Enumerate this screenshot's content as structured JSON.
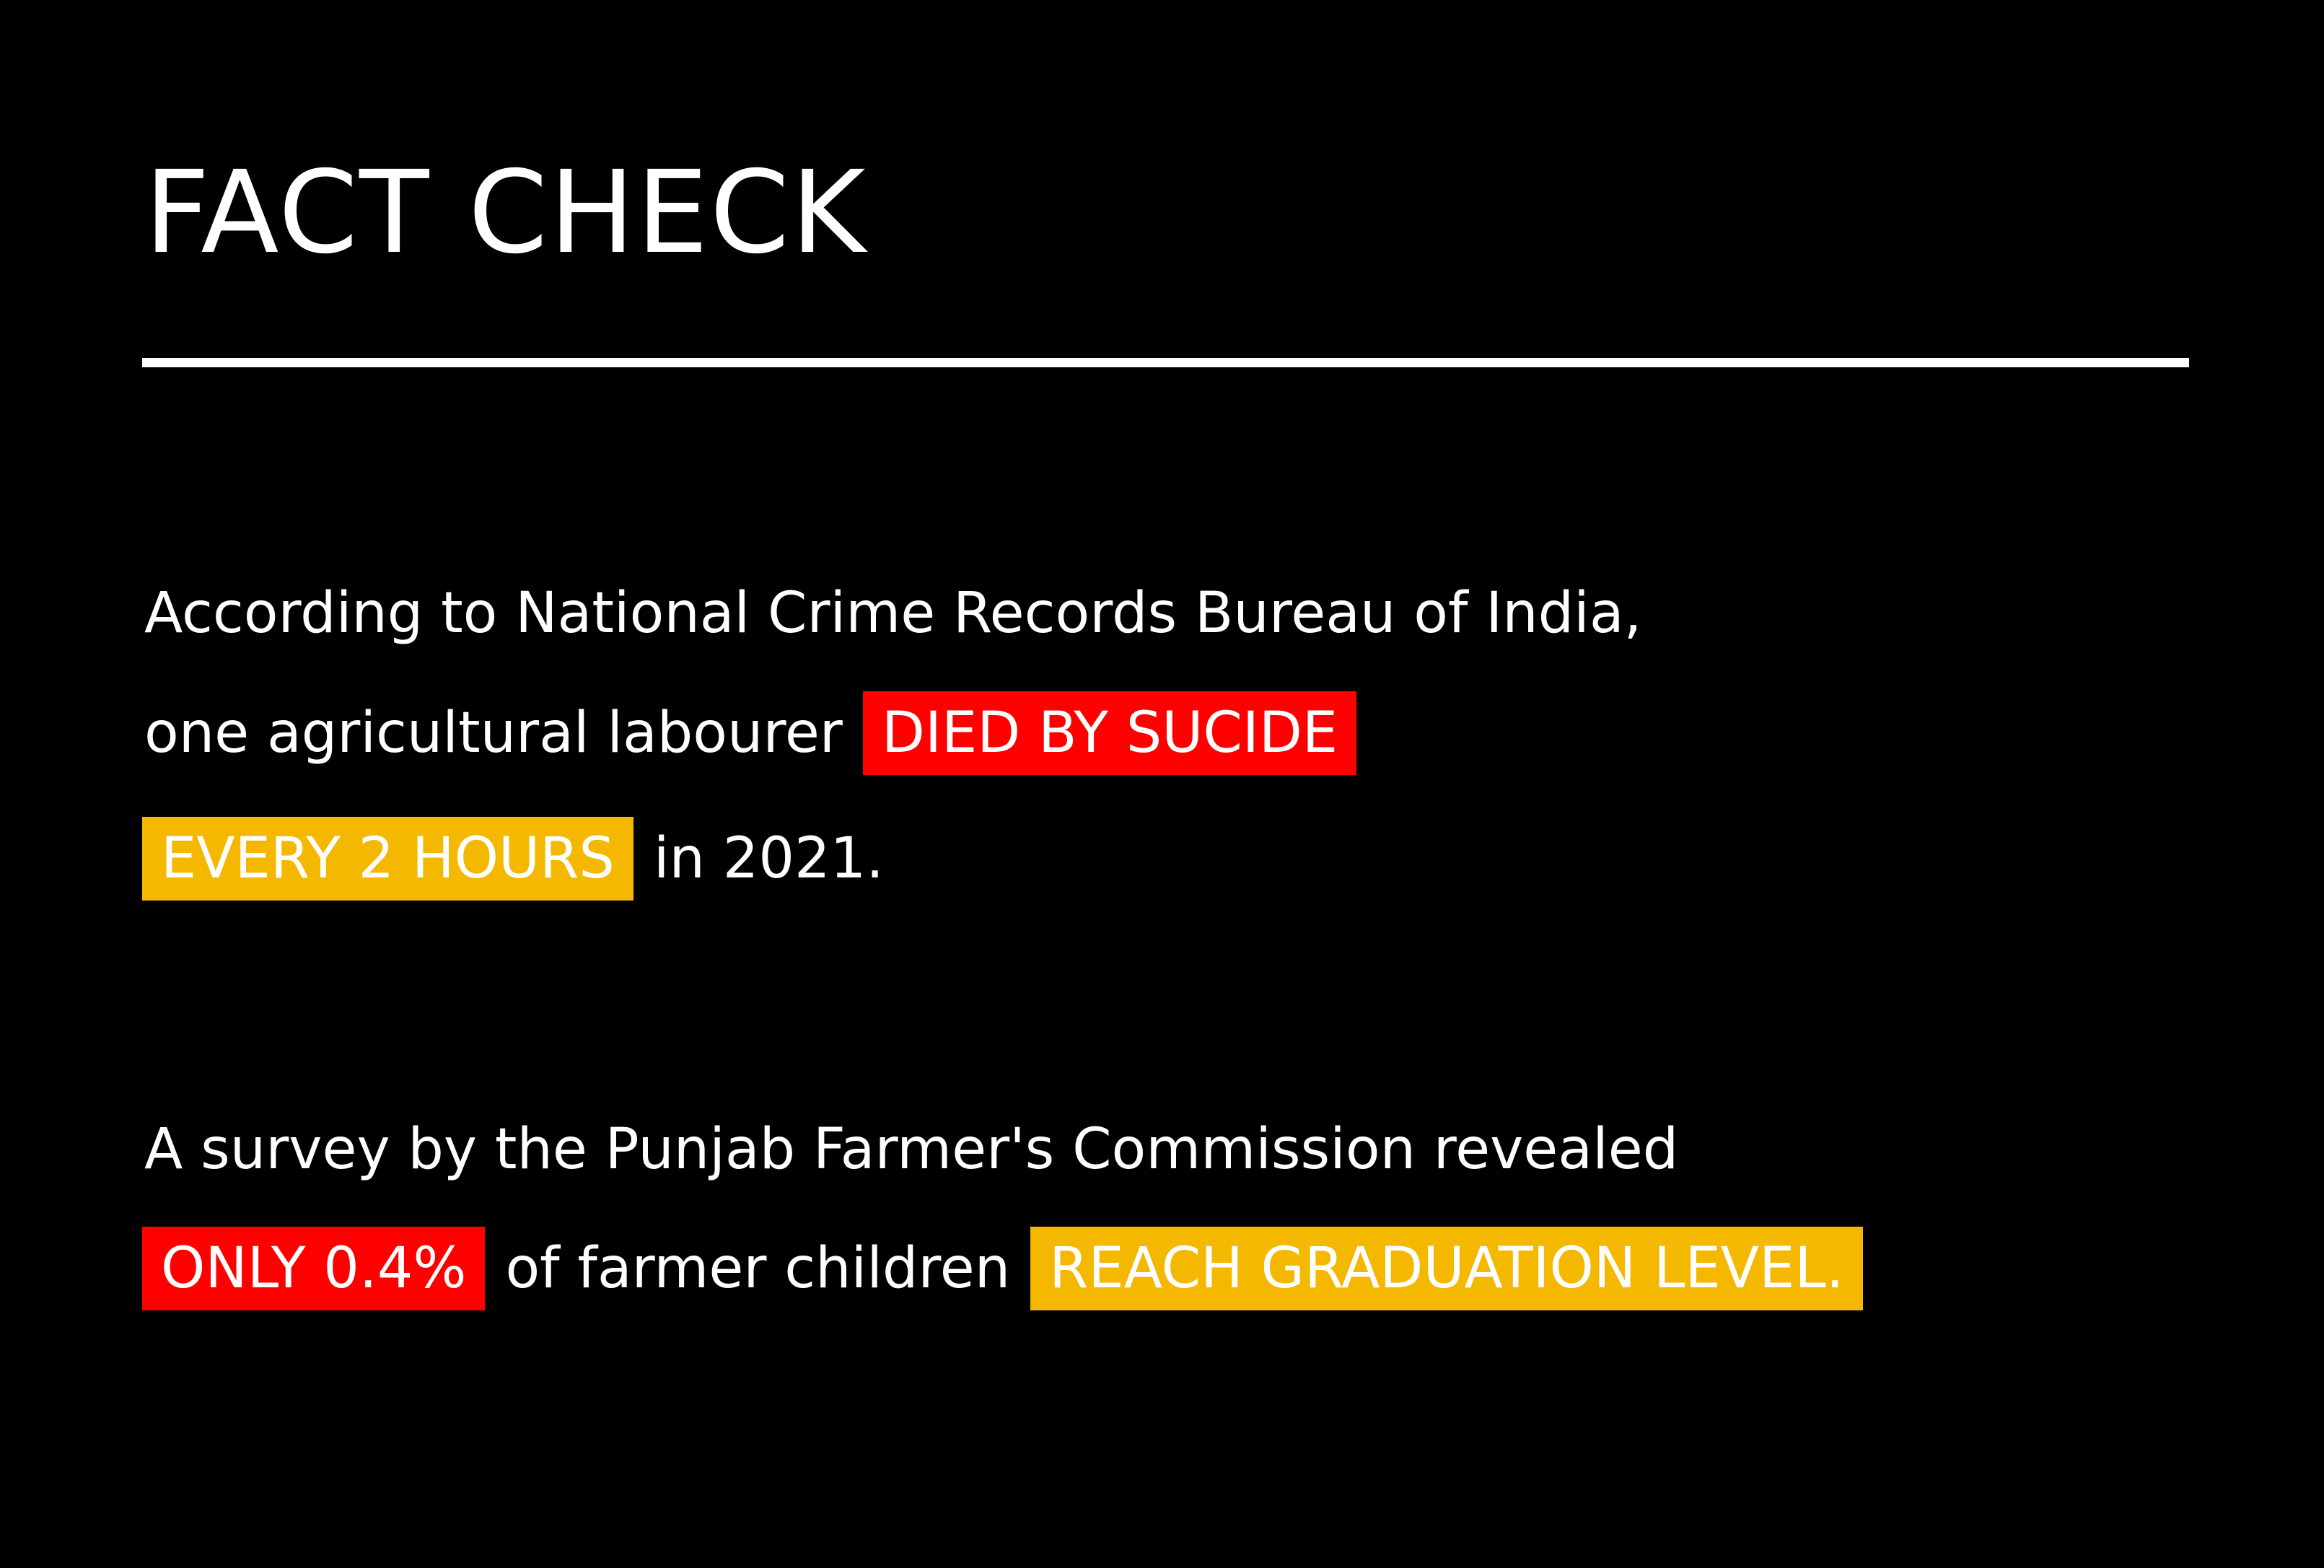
{
  "title": "FACT CHECK",
  "fact1": {
    "line1": "According to National Crime Records Bureau of India,",
    "line2_text": "one agricultural labourer",
    "highlight_died": "DIED BY SUCIDE",
    "highlight_every": "EVERY 2 HOURS",
    "line3_text": "in 2021."
  },
  "fact2": {
    "line1": "A survey by the Punjab Farmer's Commission revealed",
    "highlight_only": "ONLY 0.4%",
    "middle_text": "of farmer children",
    "highlight_reach": "REACH GRADUATION LEVEL."
  },
  "colors": {
    "background": "#000000",
    "text": "#ffffff",
    "highlight_red": "#ff0000",
    "highlight_amber": "#f5b800"
  }
}
